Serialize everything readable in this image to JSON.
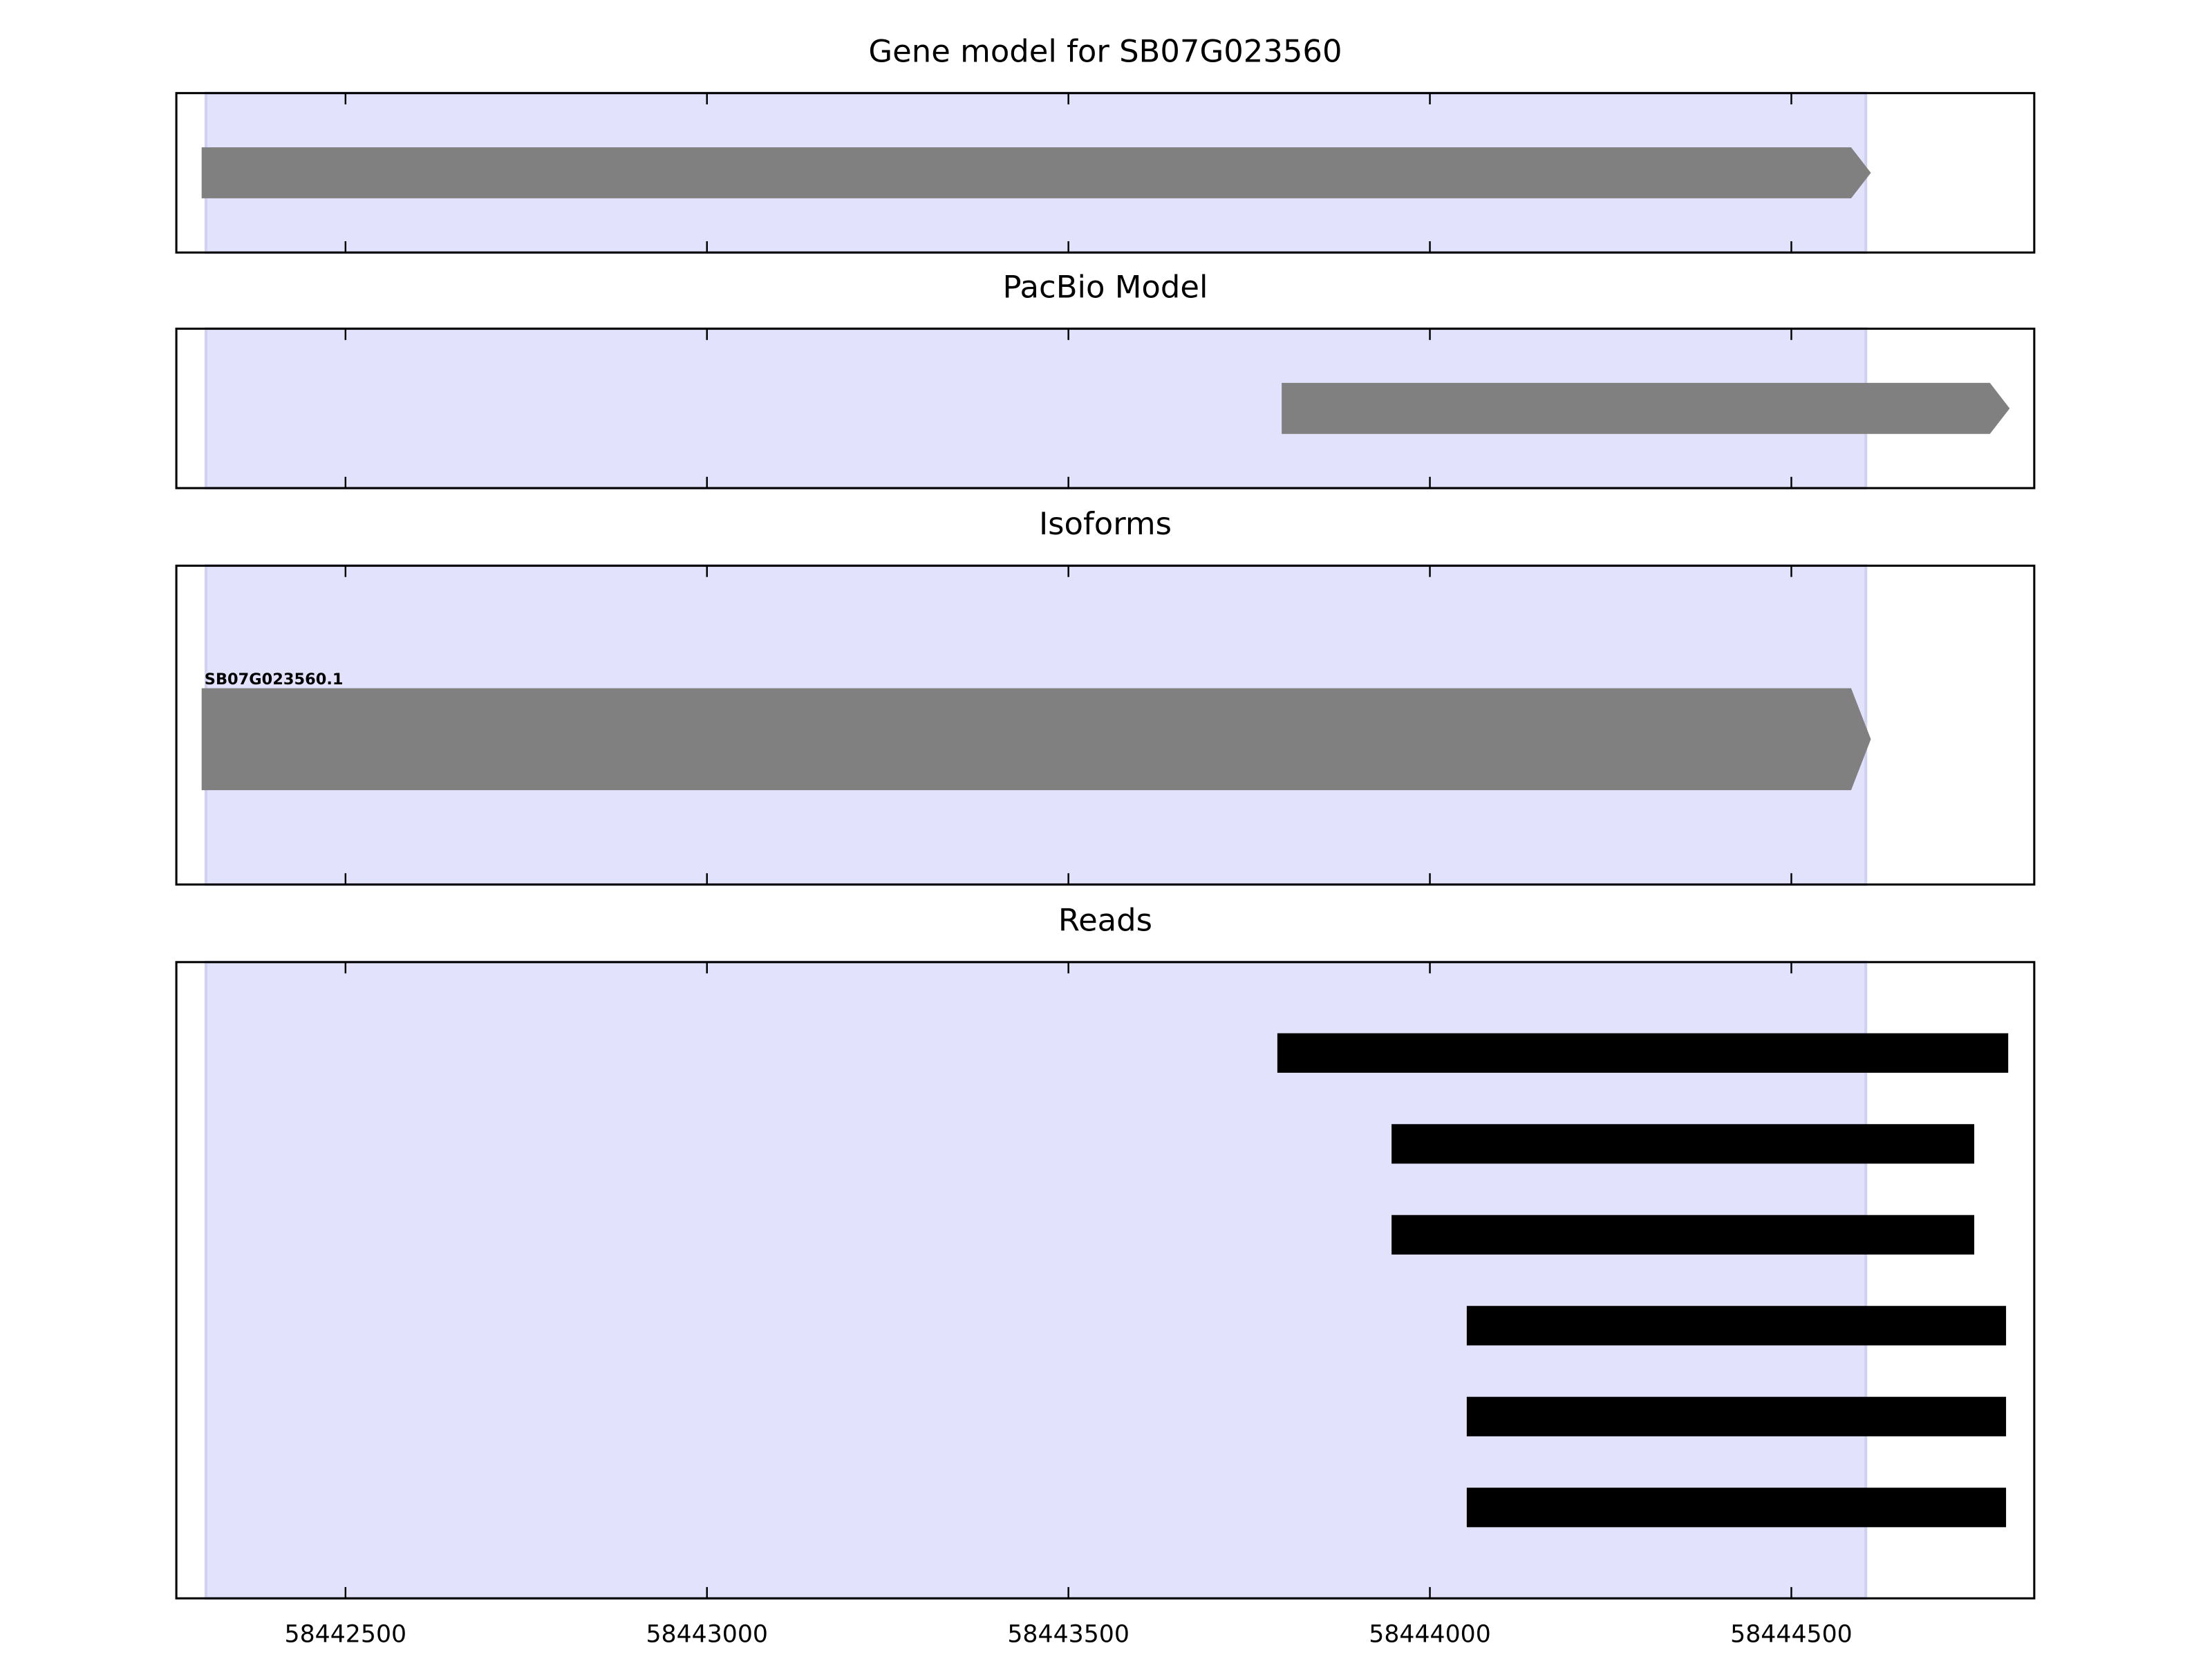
{
  "chart_data": [
    {
      "type": "gene",
      "title": "Gene model for SB07G023560",
      "xlim": [
        58442266,
        58444836
      ],
      "xticks": [
        58442500,
        58443000,
        58443500,
        58444000,
        58444500
      ],
      "highlight": [
        58442307,
        58444603
      ],
      "color": "#808080",
      "values": [
        [
          58442301,
          58444610
        ]
      ]
    },
    {
      "type": "gene",
      "title": "PacBio Model",
      "xlim": [
        58442266,
        58444836
      ],
      "xticks": [
        58442500,
        58443000,
        58443500,
        58444000,
        58444500
      ],
      "highlight": [
        58442307,
        58444603
      ],
      "color": "#808080",
      "values": [
        [
          58443795,
          58444802
        ]
      ]
    },
    {
      "type": "gene",
      "title": "Isoforms",
      "xlim": [
        58442266,
        58444836
      ],
      "xticks": [
        58442500,
        58443000,
        58443500,
        58444000,
        58444500
      ],
      "highlight": [
        58442307,
        58444603
      ],
      "color": "#808080",
      "labels": [
        "SB07G023560.1"
      ],
      "values": [
        [
          58442301,
          58444610
        ]
      ]
    },
    {
      "type": "reads",
      "title": "Reads",
      "xlim": [
        58442266,
        58444836
      ],
      "xticks": [
        58442500,
        58443000,
        58443500,
        58444000,
        58444500
      ],
      "highlight": [
        58442307,
        58444603
      ],
      "color": "#000000",
      "values": [
        [
          58443789,
          58444800
        ],
        [
          58443947,
          58444753
        ],
        [
          58443947,
          58444753
        ],
        [
          58444051,
          58444797
        ],
        [
          58444051,
          58444797
        ],
        [
          58444051,
          58444797
        ]
      ]
    }
  ]
}
